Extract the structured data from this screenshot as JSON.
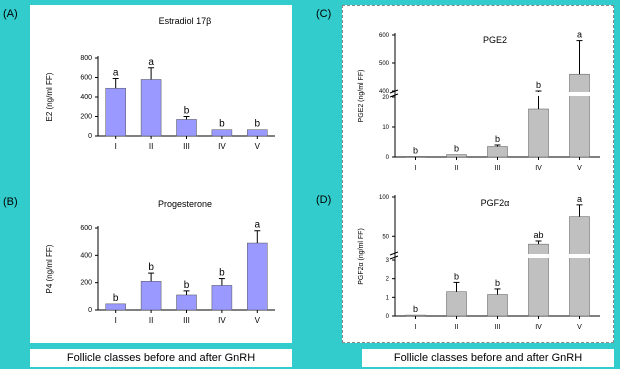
{
  "panel_labels": {
    "a": "(A)",
    "b": "(B)",
    "c": "(C)",
    "d": "(D)"
  },
  "captions": {
    "left": "Follicle classes before and after GnRH",
    "right": "Follicle classes before and after GnRH"
  },
  "chart_data": [
    {
      "id": "A",
      "type": "bar",
      "title": "Estradiol 17β",
      "ylabel": "E2 (ng/ml FF)",
      "categories": [
        "I",
        "II",
        "III",
        "IV",
        "V"
      ],
      "values": [
        490,
        580,
        170,
        65,
        65
      ],
      "errors": [
        100,
        120,
        30,
        0,
        0
      ],
      "letters": [
        "a",
        "a",
        "b",
        "b",
        "b"
      ],
      "ylim": [
        0,
        800
      ],
      "yticks": [
        0,
        200,
        400,
        600,
        800
      ],
      "color": "#9999ff"
    },
    {
      "id": "B",
      "type": "bar",
      "title": "Progesterone",
      "ylabel": "P4 (ng/ml FF)",
      "categories": [
        "I",
        "II",
        "III",
        "IV",
        "V"
      ],
      "values": [
        45,
        210,
        110,
        180,
        490
      ],
      "errors": [
        0,
        60,
        30,
        50,
        90
      ],
      "letters": [
        "b",
        "b",
        "b",
        "b",
        "a"
      ],
      "ylim": [
        0,
        600
      ],
      "yticks": [
        0,
        200,
        400,
        600
      ],
      "color": "#9999ff"
    },
    {
      "id": "C",
      "type": "bar",
      "title": "PGE2",
      "ylabel": "PGE2 (ng/ml FF)",
      "categories": [
        "I",
        "II",
        "III",
        "IV",
        "V"
      ],
      "values": [
        0.2,
        0.8,
        3.5,
        16,
        460
      ],
      "errors": [
        0,
        0,
        0.5,
        7,
        120
      ],
      "letters": [
        "b",
        "b",
        "b",
        "b",
        "a"
      ],
      "yticks": [
        0,
        10,
        20,
        400,
        500,
        600
      ],
      "axis_break": true,
      "color": "#c0c0c0"
    },
    {
      "id": "D",
      "type": "bar",
      "title": "PGF2α",
      "ylabel": "PGF2α (ng/ml FF)",
      "categories": [
        "I",
        "II",
        "III",
        "IV",
        "V"
      ],
      "values": [
        0.05,
        1.3,
        1.15,
        40,
        75
      ],
      "errors": [
        0,
        0.5,
        0.3,
        4,
        15
      ],
      "letters": [
        "b",
        "b",
        "b",
        "ab",
        "a"
      ],
      "yticks": [
        0,
        1,
        2,
        3,
        50,
        100
      ],
      "axis_break": true,
      "color": "#c0c0c0"
    }
  ]
}
